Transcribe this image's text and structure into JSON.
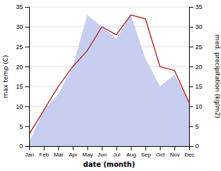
{
  "chart_data": {
    "type": "line",
    "xlabel": "date (month)",
    "ylabel": "max temp (C)",
    "y2label": "med. precipitation (kg/m2)",
    "categories": [
      "Jan",
      "Feb",
      "Mar",
      "Apr",
      "May",
      "Jun",
      "Jul",
      "Aug",
      "Sep",
      "Oct",
      "Nov",
      "Dec"
    ],
    "series": [
      {
        "type": "area",
        "axis": "y2",
        "color": "#c8cef0",
        "values": [
          1,
          9,
          13,
          20,
          33,
          30,
          27,
          33,
          22,
          15,
          18,
          11
        ]
      },
      {
        "type": "line",
        "color": "#b03030",
        "values": [
          3,
          9,
          15,
          20,
          24,
          30,
          28,
          33,
          32,
          20,
          19,
          11
        ]
      }
    ],
    "ylim": [
      0,
      35
    ],
    "yticks": [
      0,
      5,
      10,
      15,
      20,
      25,
      30,
      35
    ],
    "y2lim": [
      0,
      35
    ],
    "y2ticks": [
      0,
      5,
      10,
      15,
      20,
      25,
      30,
      35
    ],
    "grid": true
  }
}
